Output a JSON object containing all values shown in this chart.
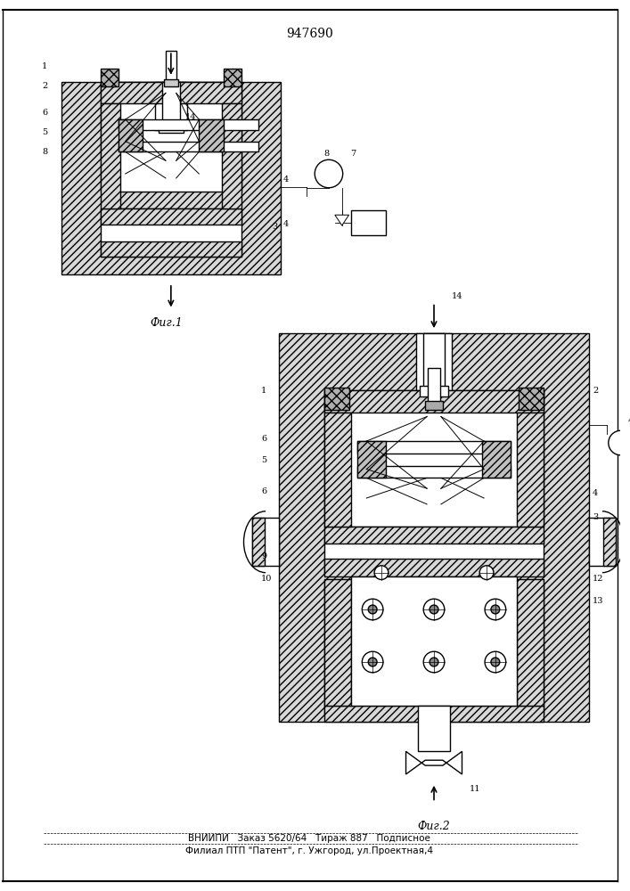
{
  "title": "947690",
  "footer_line1": "ВНИИПИ   Заказ 5620/64   Тираж 887   Подписное",
  "footer_line2": "Филиал ПТП \"Патент\", г. Ужгород, ул.Проектная,4",
  "fig1_label": "Фиг.1",
  "fig2_label": "Фиг.2",
  "bg_color": "#ffffff",
  "hatch_fc": "#d8d8d8",
  "hatch_pat": "////",
  "lw_main": 1.0,
  "lw_thin": 0.6
}
